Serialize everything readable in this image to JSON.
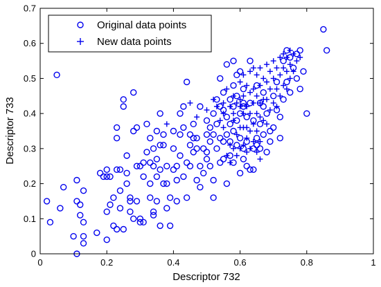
{
  "chart_data": {
    "type": "scatter",
    "title": "",
    "xlabel": "Descriptor 732",
    "ylabel": "Descriptor 733",
    "xlim": [
      0,
      1
    ],
    "ylim": [
      0,
      0.7
    ],
    "xticks": [
      "0",
      "0.2",
      "0.4",
      "0.6",
      "0.8",
      "1"
    ],
    "yticks": [
      "0",
      "0.1",
      "0.2",
      "0.3",
      "0.4",
      "0.5",
      "0.6",
      "0.7"
    ],
    "legend_position": "top-left",
    "grid": false,
    "color": "#0000ee",
    "series": [
      {
        "name": "Original data points",
        "marker": "circle",
        "points": [
          [
            0.05,
            0.51
          ],
          [
            0.02,
            0.15
          ],
          [
            0.03,
            0.09
          ],
          [
            0.06,
            0.13
          ],
          [
            0.07,
            0.19
          ],
          [
            0.1,
            0.05
          ],
          [
            0.11,
            0.0
          ],
          [
            0.11,
            0.15
          ],
          [
            0.11,
            0.21
          ],
          [
            0.12,
            0.11
          ],
          [
            0.12,
            0.14
          ],
          [
            0.13,
            0.18
          ],
          [
            0.13,
            0.05
          ],
          [
            0.13,
            0.03
          ],
          [
            0.13,
            0.09
          ],
          [
            0.17,
            0.06
          ],
          [
            0.18,
            0.23
          ],
          [
            0.19,
            0.22
          ],
          [
            0.2,
            0.04
          ],
          [
            0.2,
            0.12
          ],
          [
            0.2,
            0.22
          ],
          [
            0.2,
            0.24
          ],
          [
            0.21,
            0.14
          ],
          [
            0.21,
            0.22
          ],
          [
            0.22,
            0.08
          ],
          [
            0.22,
            0.16
          ],
          [
            0.23,
            0.07
          ],
          [
            0.23,
            0.24
          ],
          [
            0.23,
            0.33
          ],
          [
            0.23,
            0.36
          ],
          [
            0.24,
            0.24
          ],
          [
            0.24,
            0.18
          ],
          [
            0.24,
            0.13
          ],
          [
            0.25,
            0.44
          ],
          [
            0.25,
            0.42
          ],
          [
            0.25,
            0.07
          ],
          [
            0.26,
            0.23
          ],
          [
            0.26,
            0.28
          ],
          [
            0.26,
            0.2
          ],
          [
            0.27,
            0.15
          ],
          [
            0.27,
            0.16
          ],
          [
            0.27,
            0.12
          ],
          [
            0.28,
            0.1
          ],
          [
            0.28,
            0.35
          ],
          [
            0.28,
            0.46
          ],
          [
            0.29,
            0.36
          ],
          [
            0.29,
            0.25
          ],
          [
            0.29,
            0.15
          ],
          [
            0.3,
            0.25
          ],
          [
            0.3,
            0.1
          ],
          [
            0.3,
            0.09
          ],
          [
            0.31,
            0.09
          ],
          [
            0.31,
            0.22
          ],
          [
            0.31,
            0.26
          ],
          [
            0.32,
            0.29
          ],
          [
            0.32,
            0.37
          ],
          [
            0.33,
            0.33
          ],
          [
            0.33,
            0.26
          ],
          [
            0.33,
            0.2
          ],
          [
            0.33,
            0.16
          ],
          [
            0.34,
            0.12
          ],
          [
            0.34,
            0.11
          ],
          [
            0.34,
            0.25
          ],
          [
            0.34,
            0.3
          ],
          [
            0.35,
            0.35
          ],
          [
            0.35,
            0.27
          ],
          [
            0.35,
            0.22
          ],
          [
            0.35,
            0.15
          ],
          [
            0.36,
            0.08
          ],
          [
            0.36,
            0.4
          ],
          [
            0.36,
            0.31
          ],
          [
            0.36,
            0.24
          ],
          [
            0.37,
            0.34
          ],
          [
            0.37,
            0.31
          ],
          [
            0.37,
            0.2
          ],
          [
            0.38,
            0.25
          ],
          [
            0.38,
            0.2
          ],
          [
            0.38,
            0.13
          ],
          [
            0.39,
            0.16
          ],
          [
            0.39,
            0.08
          ],
          [
            0.4,
            0.35
          ],
          [
            0.4,
            0.3
          ],
          [
            0.4,
            0.24
          ],
          [
            0.41,
            0.21
          ],
          [
            0.41,
            0.15
          ],
          [
            0.42,
            0.4
          ],
          [
            0.42,
            0.34
          ],
          [
            0.42,
            0.28
          ],
          [
            0.43,
            0.42
          ],
          [
            0.43,
            0.36
          ],
          [
            0.43,
            0.22
          ],
          [
            0.44,
            0.49
          ],
          [
            0.44,
            0.26
          ],
          [
            0.44,
            0.16
          ],
          [
            0.45,
            0.34
          ],
          [
            0.45,
            0.31
          ],
          [
            0.45,
            0.25
          ],
          [
            0.46,
            0.37
          ],
          [
            0.46,
            0.33
          ],
          [
            0.46,
            0.29
          ],
          [
            0.47,
            0.33
          ],
          [
            0.47,
            0.3
          ],
          [
            0.47,
            0.21
          ],
          [
            0.48,
            0.42
          ],
          [
            0.48,
            0.25
          ],
          [
            0.48,
            0.19
          ],
          [
            0.49,
            0.3
          ],
          [
            0.49,
            0.23
          ],
          [
            0.5,
            0.38
          ],
          [
            0.5,
            0.34
          ],
          [
            0.5,
            0.29
          ],
          [
            0.51,
            0.36
          ],
          [
            0.51,
            0.32
          ],
          [
            0.51,
            0.25
          ],
          [
            0.52,
            0.4
          ],
          [
            0.52,
            0.34
          ],
          [
            0.52,
            0.21
          ],
          [
            0.52,
            0.16
          ],
          [
            0.53,
            0.44
          ],
          [
            0.53,
            0.37
          ],
          [
            0.53,
            0.3
          ],
          [
            0.54,
            0.5
          ],
          [
            0.54,
            0.42
          ],
          [
            0.54,
            0.33
          ],
          [
            0.54,
            0.26
          ],
          [
            0.55,
            0.46
          ],
          [
            0.55,
            0.41
          ],
          [
            0.55,
            0.32
          ],
          [
            0.55,
            0.27
          ],
          [
            0.56,
            0.54
          ],
          [
            0.56,
            0.39
          ],
          [
            0.56,
            0.34
          ],
          [
            0.56,
            0.2
          ],
          [
            0.57,
            0.44
          ],
          [
            0.57,
            0.37
          ],
          [
            0.57,
            0.32
          ],
          [
            0.58,
            0.55
          ],
          [
            0.58,
            0.48
          ],
          [
            0.58,
            0.42
          ],
          [
            0.58,
            0.35
          ],
          [
            0.58,
            0.26
          ],
          [
            0.59,
            0.51
          ],
          [
            0.59,
            0.45
          ],
          [
            0.59,
            0.38
          ],
          [
            0.59,
            0.31
          ],
          [
            0.6,
            0.52
          ],
          [
            0.6,
            0.4
          ],
          [
            0.6,
            0.33
          ],
          [
            0.6,
            0.23
          ],
          [
            0.61,
            0.47
          ],
          [
            0.61,
            0.42
          ],
          [
            0.61,
            0.3
          ],
          [
            0.61,
            0.27
          ],
          [
            0.62,
            0.39
          ],
          [
            0.62,
            0.32
          ],
          [
            0.62,
            0.25
          ],
          [
            0.63,
            0.55
          ],
          [
            0.63,
            0.43
          ],
          [
            0.63,
            0.24
          ],
          [
            0.64,
            0.38
          ],
          [
            0.64,
            0.3
          ],
          [
            0.64,
            0.24
          ],
          [
            0.65,
            0.48
          ],
          [
            0.65,
            0.33
          ],
          [
            0.65,
            0.31
          ],
          [
            0.66,
            0.43
          ],
          [
            0.66,
            0.37
          ],
          [
            0.66,
            0.3
          ],
          [
            0.67,
            0.46
          ],
          [
            0.67,
            0.42
          ],
          [
            0.67,
            0.34
          ],
          [
            0.68,
            0.4
          ],
          [
            0.68,
            0.29
          ],
          [
            0.69,
            0.35
          ],
          [
            0.69,
            0.32
          ],
          [
            0.7,
            0.45
          ],
          [
            0.7,
            0.36
          ],
          [
            0.71,
            0.49
          ],
          [
            0.71,
            0.41
          ],
          [
            0.72,
            0.39
          ],
          [
            0.72,
            0.33
          ],
          [
            0.73,
            0.55
          ],
          [
            0.73,
            0.44
          ],
          [
            0.74,
            0.58
          ],
          [
            0.74,
            0.49
          ],
          [
            0.75,
            0.56
          ],
          [
            0.75,
            0.46
          ],
          [
            0.76,
            0.53
          ],
          [
            0.77,
            0.57
          ],
          [
            0.77,
            0.5
          ],
          [
            0.78,
            0.58
          ],
          [
            0.78,
            0.47
          ],
          [
            0.79,
            0.52
          ],
          [
            0.8,
            0.4
          ],
          [
            0.85,
            0.64
          ],
          [
            0.86,
            0.58
          ],
          [
            0.61,
            0.43
          ],
          [
            0.57,
            0.28
          ],
          [
            0.5,
            0.27
          ],
          [
            0.41,
            0.25
          ]
        ]
      },
      {
        "name": "New data points",
        "marker": "plus",
        "points": [
          [
            0.38,
            0.37
          ],
          [
            0.45,
            0.43
          ],
          [
            0.47,
            0.39
          ],
          [
            0.5,
            0.41
          ],
          [
            0.52,
            0.44
          ],
          [
            0.53,
            0.42
          ],
          [
            0.54,
            0.38
          ],
          [
            0.55,
            0.36
          ],
          [
            0.55,
            0.43
          ],
          [
            0.56,
            0.47
          ],
          [
            0.56,
            0.28
          ],
          [
            0.57,
            0.42
          ],
          [
            0.57,
            0.31
          ],
          [
            0.57,
            0.26
          ],
          [
            0.58,
            0.45
          ],
          [
            0.58,
            0.4
          ],
          [
            0.58,
            0.3
          ],
          [
            0.59,
            0.43
          ],
          [
            0.59,
            0.34
          ],
          [
            0.59,
            0.28
          ],
          [
            0.6,
            0.49
          ],
          [
            0.6,
            0.44
          ],
          [
            0.6,
            0.36
          ],
          [
            0.6,
            0.3
          ],
          [
            0.61,
            0.51
          ],
          [
            0.61,
            0.45
          ],
          [
            0.61,
            0.4
          ],
          [
            0.61,
            0.36
          ],
          [
            0.61,
            0.31
          ],
          [
            0.62,
            0.48
          ],
          [
            0.62,
            0.42
          ],
          [
            0.62,
            0.36
          ],
          [
            0.62,
            0.29
          ],
          [
            0.63,
            0.52
          ],
          [
            0.63,
            0.46
          ],
          [
            0.63,
            0.4
          ],
          [
            0.63,
            0.35
          ],
          [
            0.63,
            0.3
          ],
          [
            0.64,
            0.53
          ],
          [
            0.64,
            0.47
          ],
          [
            0.64,
            0.43
          ],
          [
            0.64,
            0.37
          ],
          [
            0.64,
            0.32
          ],
          [
            0.65,
            0.51
          ],
          [
            0.65,
            0.45
          ],
          [
            0.65,
            0.4
          ],
          [
            0.65,
            0.35
          ],
          [
            0.65,
            0.29
          ],
          [
            0.66,
            0.53
          ],
          [
            0.66,
            0.48
          ],
          [
            0.66,
            0.39
          ],
          [
            0.66,
            0.32
          ],
          [
            0.66,
            0.27
          ],
          [
            0.67,
            0.5
          ],
          [
            0.67,
            0.44
          ],
          [
            0.67,
            0.38
          ],
          [
            0.68,
            0.54
          ],
          [
            0.68,
            0.49
          ],
          [
            0.68,
            0.44
          ],
          [
            0.68,
            0.37
          ],
          [
            0.69,
            0.52
          ],
          [
            0.69,
            0.47
          ],
          [
            0.69,
            0.41
          ],
          [
            0.7,
            0.55
          ],
          [
            0.7,
            0.5
          ],
          [
            0.7,
            0.43
          ],
          [
            0.71,
            0.53
          ],
          [
            0.71,
            0.47
          ],
          [
            0.71,
            0.42
          ],
          [
            0.72,
            0.56
          ],
          [
            0.72,
            0.51
          ],
          [
            0.72,
            0.45
          ],
          [
            0.73,
            0.57
          ],
          [
            0.73,
            0.53
          ],
          [
            0.73,
            0.48
          ],
          [
            0.74,
            0.56
          ],
          [
            0.74,
            0.52
          ],
          [
            0.74,
            0.47
          ],
          [
            0.75,
            0.58
          ],
          [
            0.75,
            0.54
          ],
          [
            0.75,
            0.5
          ],
          [
            0.76,
            0.57
          ],
          [
            0.76,
            0.52
          ],
          [
            0.77,
            0.55
          ],
          [
            0.78,
            0.56
          ],
          [
            0.55,
            0.4
          ],
          [
            0.58,
            0.38
          ],
          [
            0.62,
            0.33
          ],
          [
            0.6,
            0.42
          ],
          [
            0.66,
            0.43
          ]
        ]
      }
    ]
  }
}
